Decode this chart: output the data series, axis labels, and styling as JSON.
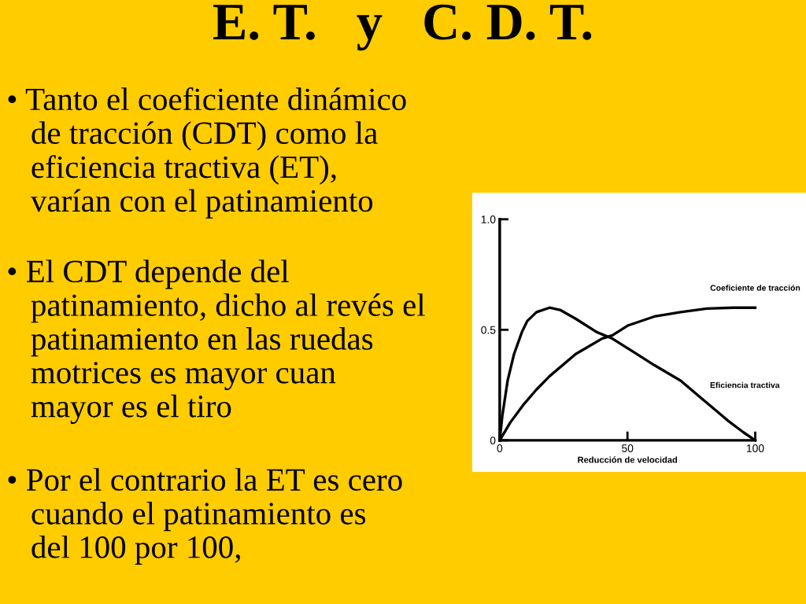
{
  "chart_data": {
    "type": "line",
    "title": "E. T.   y   C. D. T.",
    "annotations": [
      "• Tanto el coeficiente dinámico\n   de tracción (CDT) como la\n   eficiencia tractiva (ET),\n   varían con el patinamiento",
      "• El CDT depende del\n   patinamiento, dicho al revés el\n   patinamiento en las ruedas\n   motrices es mayor cuan\n   mayor es el tiro",
      "• Por el contrario la ET es cero\n   cuando el patinamiento es\n   del 100 por 100,"
    ],
    "xlabel": "Reducción de velocidad",
    "series": [
      {
        "name": "Coeficiente de tracción",
        "color": "#000000",
        "x": [
          0,
          4.1,
          9.2,
          14.4,
          19.5,
          29.7,
          40,
          44.1,
          50.3,
          60.5,
          70.8,
          81,
          91.3,
          100
        ],
        "values": [
          0,
          0.08,
          0.16,
          0.23,
          0.29,
          0.39,
          0.46,
          0.475,
          0.52,
          0.56,
          0.58,
          0.596,
          0.6,
          0.6
        ]
      },
      {
        "name": "Eficiencia tractiva",
        "color": "#000000",
        "x": [
          0,
          1,
          3.1,
          5.6,
          8.7,
          10.8,
          14.4,
          19.5,
          23.6,
          29.7,
          37.9,
          44.1,
          52.3,
          60.5,
          70.8,
          81,
          89.2,
          95.4,
          100
        ],
        "values": [
          0,
          0.11,
          0.27,
          0.39,
          0.49,
          0.54,
          0.58,
          0.6,
          0.59,
          0.55,
          0.49,
          0.46,
          0.4,
          0.34,
          0.27,
          0.17,
          0.09,
          0.036,
          0
        ]
      }
    ],
    "xlim": [
      0,
      100
    ],
    "ylim": [
      0,
      1.0
    ],
    "xticks": [
      0,
      50,
      100
    ],
    "yticks": [
      0,
      0.5,
      {
        "value": 1.0,
        "label": "1.0"
      }
    ],
    "grid": false,
    "legend": false
  }
}
